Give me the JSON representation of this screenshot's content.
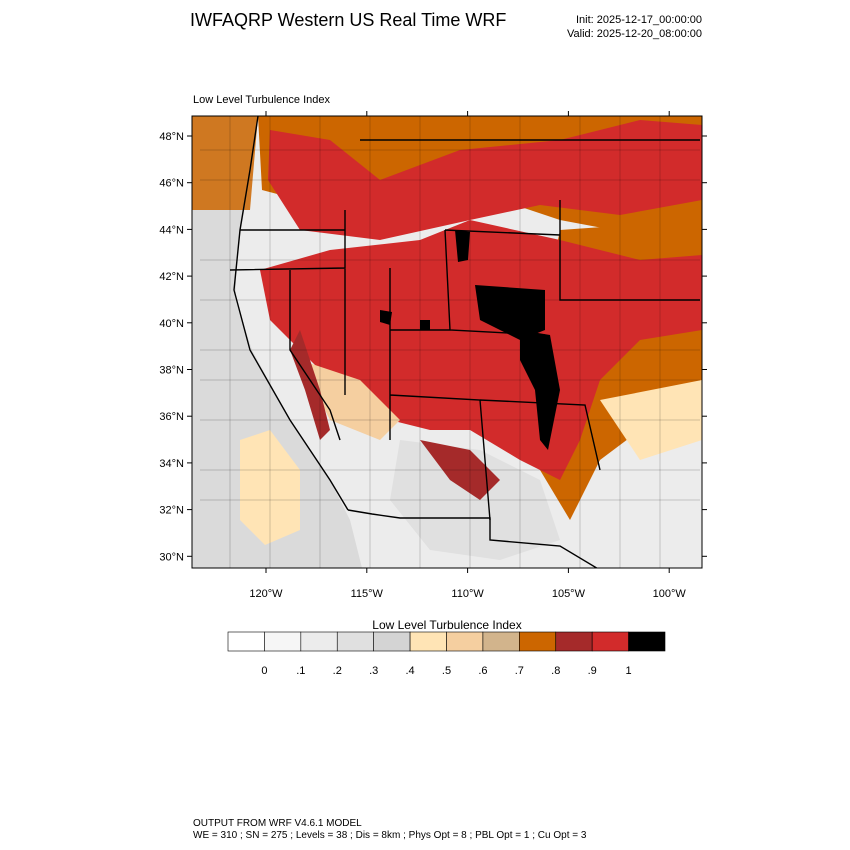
{
  "header": {
    "title": "IWFAQRP Western US Real Time WRF",
    "init": "Init: 2025-12-17_00:00:00",
    "valid": "Valid: 2025-12-20_08:00:00"
  },
  "map": {
    "subtitle": "Low Level Turbulence Index",
    "lat_labels": [
      "48°N",
      "46°N",
      "44°N",
      "42°N",
      "40°N",
      "38°N",
      "36°N",
      "34°N",
      "32°N",
      "30°N"
    ],
    "lon_labels": [
      "120°W",
      "115°W",
      "110°W",
      "105°W",
      "100°W"
    ]
  },
  "colorbar": {
    "title": "Low Level Turbulence Index",
    "labels": [
      "0",
      ".1",
      ".2",
      ".3",
      ".4",
      ".5",
      ".6",
      ".7",
      ".8",
      ".9",
      "1"
    ],
    "colors": [
      "#ffffff",
      "#f6f6f6",
      "#ececec",
      "#e0e0e0",
      "#d4d4d4",
      "#ffe4b5",
      "#f5cfa0",
      "#d2b48c",
      "#cc6600",
      "#a52a2a",
      "#d22b2b",
      "#000000"
    ]
  },
  "footer": {
    "line1": "OUTPUT FROM WRF V4.6.1 MODEL",
    "line2": "WE = 310 ; SN = 275 ; Levels = 38 ; Dis = 8km ; Phys Opt = 8 ; PBL Opt = 1 ; Cu Opt = 3"
  }
}
